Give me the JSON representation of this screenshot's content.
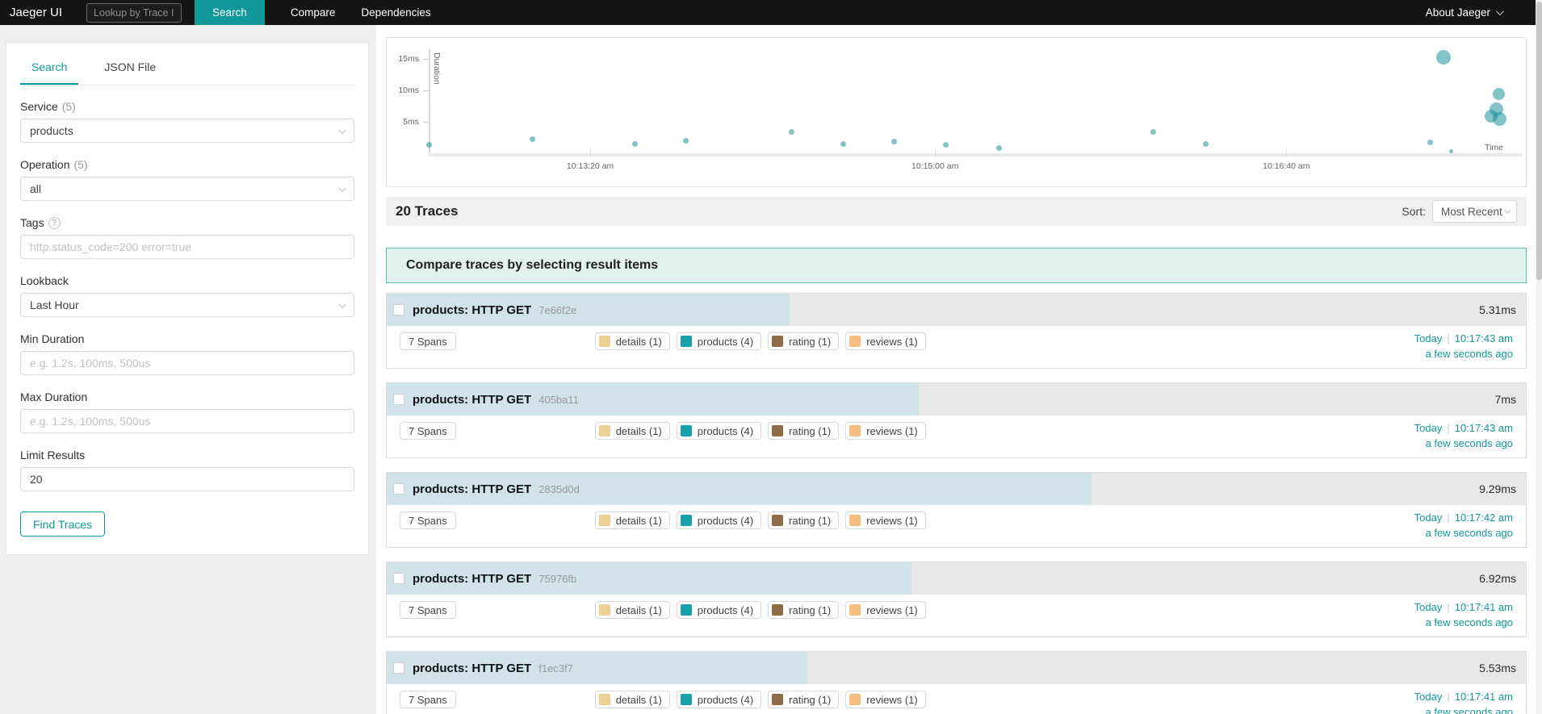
{
  "nav": {
    "brand": "Jaeger UI",
    "lookup_placeholder": "Lookup by Trace ID...",
    "search_button": "Search",
    "links": {
      "compare": "Compare",
      "dependencies": "Dependencies"
    },
    "about": "About Jaeger"
  },
  "sidebar": {
    "tabs": {
      "search": "Search",
      "json": "JSON File"
    },
    "service_label": "Service",
    "service_count": "(5)",
    "service_value": "products",
    "operation_label": "Operation",
    "operation_count": "(5)",
    "operation_value": "all",
    "tags_label": "Tags",
    "tags_help": "?",
    "tags_placeholder": "http.status_code=200 error=true",
    "lookback_label": "Lookback",
    "lookback_value": "Last Hour",
    "min_duration_label": "Min Duration",
    "min_duration_placeholder": "e.g. 1.2s, 100ms, 500us",
    "max_duration_label": "Max Duration",
    "max_duration_placeholder": "e.g. 1.2s, 100ms, 500us",
    "limit_label": "Limit Results",
    "limit_value": "20",
    "find_button": "Find Traces"
  },
  "chart_data": {
    "type": "scatter",
    "xlabel": "Time",
    "ylabel": "Duration",
    "ylim_ms": [
      0,
      16.5
    ],
    "y_ticks": [
      {
        "label": "5ms",
        "ms": 5
      },
      {
        "label": "10ms",
        "ms": 10
      },
      {
        "label": "15ms",
        "ms": 15
      }
    ],
    "x_ticks": [
      {
        "label": "10:13:20 am",
        "x": 0.149
      },
      {
        "label": "10:15:00 am",
        "x": 0.467
      },
      {
        "label": "10:16:40 am",
        "x": 0.791
      }
    ],
    "points": [
      {
        "x": 0.0,
        "ms": 1.4,
        "r": 3.5
      },
      {
        "x": 0.096,
        "ms": 2.2,
        "r": 3.5
      },
      {
        "x": 0.19,
        "ms": 1.5,
        "r": 3.5
      },
      {
        "x": 0.237,
        "ms": 2.0,
        "r": 3.5
      },
      {
        "x": 0.335,
        "ms": 3.4,
        "r": 3.5
      },
      {
        "x": 0.382,
        "ms": 1.5,
        "r": 3.5
      },
      {
        "x": 0.429,
        "ms": 1.9,
        "r": 3.5
      },
      {
        "x": 0.477,
        "ms": 1.4,
        "r": 3.5
      },
      {
        "x": 0.526,
        "ms": 0.8,
        "r": 3.5
      },
      {
        "x": 0.668,
        "ms": 3.4,
        "r": 3.5
      },
      {
        "x": 0.717,
        "ms": 1.5,
        "r": 3.5
      },
      {
        "x": 0.924,
        "ms": 1.7,
        "r": 3.5
      },
      {
        "x": 0.943,
        "ms": 0.3,
        "r": 2.5
      },
      {
        "x": 0.936,
        "ms": 15.2,
        "r": 9
      },
      {
        "x": 0.987,
        "ms": 9.4,
        "r": 7.5
      },
      {
        "x": 0.98,
        "ms": 5.9,
        "r": 8
      },
      {
        "x": 0.985,
        "ms": 7.0,
        "r": 8.5
      },
      {
        "x": 0.988,
        "ms": 5.4,
        "r": 8.5
      }
    ]
  },
  "results": {
    "count_label": "20 Traces",
    "sort_label": "Sort:",
    "sort_value": "Most Recent",
    "banner": "Compare traces by selecting result items",
    "max_scale_ms": 15,
    "span_tags": [
      {
        "label": "details (1)",
        "color": "#ecd194"
      },
      {
        "label": "products (4)",
        "color": "#16a2a8"
      },
      {
        "label": "rating (1)",
        "color": "#8e6c45"
      },
      {
        "label": "reviews (1)",
        "color": "#f4bd82"
      }
    ],
    "traces": [
      {
        "title": "products: HTTP GET",
        "trace_id": "7e66f2e",
        "duration": "5.31ms",
        "duration_ms": 5.31,
        "spans": "7 Spans",
        "date": "Today",
        "time": "10:17:43 am",
        "ago": "a few seconds ago"
      },
      {
        "title": "products: HTTP GET",
        "trace_id": "405ba11",
        "duration": "7ms",
        "duration_ms": 7.0,
        "spans": "7 Spans",
        "date": "Today",
        "time": "10:17:43 am",
        "ago": "a few seconds ago"
      },
      {
        "title": "products: HTTP GET",
        "trace_id": "2835d0d",
        "duration": "9.29ms",
        "duration_ms": 9.29,
        "spans": "7 Spans",
        "date": "Today",
        "time": "10:17:42 am",
        "ago": "a few seconds ago"
      },
      {
        "title": "products: HTTP GET",
        "trace_id": "75976fb",
        "duration": "6.92ms",
        "duration_ms": 6.92,
        "spans": "7 Spans",
        "date": "Today",
        "time": "10:17:41 am",
        "ago": "a few seconds ago"
      },
      {
        "title": "products: HTTP GET",
        "trace_id": "f1ec3f7",
        "duration": "5.53ms",
        "duration_ms": 5.53,
        "spans": "7 Spans",
        "date": "Today",
        "time": "10:17:41 am",
        "ago": "a few seconds ago"
      }
    ]
  },
  "colors": {
    "accent": "#119999",
    "nav_bg": "#141414",
    "trace_header_bg": "#e8e8e8",
    "trace_bar": "#cfe3e8",
    "banner_bg": "#e2f1ed",
    "banner_border": "#63b9ac",
    "dot": "rgba(30,145,153,0.55)"
  }
}
